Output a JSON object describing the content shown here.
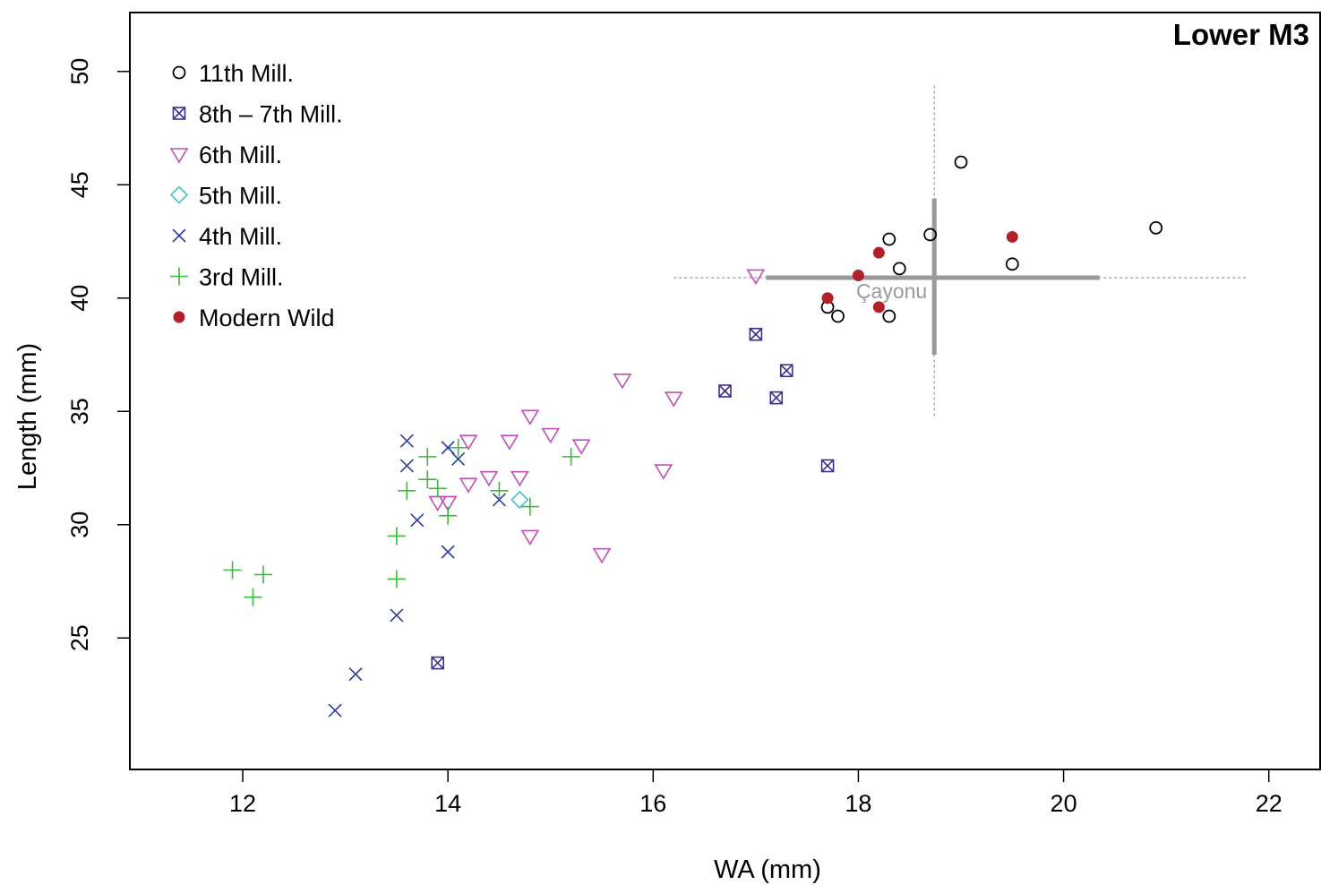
{
  "chart_data": {
    "type": "scatter",
    "title": "Lower M3",
    "xlabel": "WA (mm)",
    "ylabel": "Length (mm)",
    "xlim": [
      10.9,
      22.5
    ],
    "ylim": [
      19.2,
      52.6
    ],
    "xticks": [
      12,
      14,
      16,
      18,
      20,
      22
    ],
    "yticks": [
      25,
      30,
      35,
      40,
      45,
      50
    ],
    "grid": false,
    "legend_position": "top-left",
    "series": [
      {
        "name": "11th Mill.",
        "marker": "circle",
        "color": "#000000",
        "points": [
          [
            17.7,
            39.6
          ],
          [
            17.8,
            39.2
          ],
          [
            18.3,
            42.6
          ],
          [
            18.3,
            39.2
          ],
          [
            18.4,
            41.3
          ],
          [
            18.7,
            42.8
          ],
          [
            19.0,
            46.0
          ],
          [
            19.5,
            41.5
          ],
          [
            20.9,
            43.1
          ]
        ]
      },
      {
        "name": "8th – 7th Mill.",
        "marker": "boxed-x",
        "color": "#3a2f8f",
        "points": [
          [
            13.9,
            23.9
          ],
          [
            16.7,
            35.9
          ],
          [
            17.0,
            38.4
          ],
          [
            17.2,
            35.6
          ],
          [
            17.3,
            36.8
          ],
          [
            17.7,
            32.6
          ]
        ]
      },
      {
        "name": "6th Mill.",
        "marker": "triangle-down",
        "color": "#c24fb5",
        "points": [
          [
            13.9,
            31.0
          ],
          [
            14.0,
            31.0
          ],
          [
            14.2,
            31.8
          ],
          [
            14.2,
            33.7
          ],
          [
            14.4,
            32.1
          ],
          [
            14.6,
            33.7
          ],
          [
            14.7,
            32.1
          ],
          [
            14.8,
            29.5
          ],
          [
            14.8,
            34.8
          ],
          [
            15.0,
            34.0
          ],
          [
            15.3,
            33.5
          ],
          [
            15.5,
            28.7
          ],
          [
            15.7,
            36.4
          ],
          [
            16.1,
            32.4
          ],
          [
            16.2,
            35.6
          ],
          [
            17.0,
            41.0
          ]
        ]
      },
      {
        "name": "5th Mill.",
        "marker": "diamond",
        "color": "#49c2c9",
        "points": [
          [
            14.7,
            31.1
          ]
        ]
      },
      {
        "name": "4th Mill.",
        "marker": "x",
        "color": "#2c3e9b",
        "points": [
          [
            12.9,
            21.8
          ],
          [
            13.1,
            23.4
          ],
          [
            13.5,
            26.0
          ],
          [
            13.6,
            33.7
          ],
          [
            13.6,
            32.6
          ],
          [
            13.7,
            30.2
          ],
          [
            14.0,
            33.4
          ],
          [
            14.0,
            28.8
          ],
          [
            14.1,
            32.9
          ],
          [
            14.5,
            31.1
          ]
        ]
      },
      {
        "name": "3rd Mill.",
        "marker": "plus",
        "color": "#3cb83a",
        "points": [
          [
            11.9,
            28.0
          ],
          [
            12.1,
            26.8
          ],
          [
            12.2,
            27.8
          ],
          [
            13.5,
            29.5
          ],
          [
            13.5,
            27.6
          ],
          [
            13.6,
            31.5
          ],
          [
            13.8,
            32.0
          ],
          [
            13.8,
            33.0
          ],
          [
            13.9,
            31.6
          ],
          [
            14.0,
            30.4
          ],
          [
            14.1,
            33.4
          ],
          [
            14.5,
            31.5
          ],
          [
            14.8,
            30.8
          ],
          [
            15.2,
            33.0
          ]
        ]
      },
      {
        "name": "Modern Wild",
        "marker": "filled-circle",
        "color": "#b2202a",
        "points": [
          [
            17.7,
            40.0
          ],
          [
            18.0,
            41.0
          ],
          [
            18.2,
            42.0
          ],
          [
            18.2,
            39.6
          ],
          [
            19.5,
            42.7
          ]
        ]
      }
    ],
    "reference": {
      "label": "Çayonu",
      "color": "#999999",
      "center": [
        18.74,
        40.9
      ],
      "x_thick": [
        17.1,
        20.35
      ],
      "x_range": [
        16.2,
        21.8
      ],
      "y_thick": [
        37.5,
        44.4
      ],
      "y_range": [
        34.8,
        49.5
      ]
    }
  }
}
